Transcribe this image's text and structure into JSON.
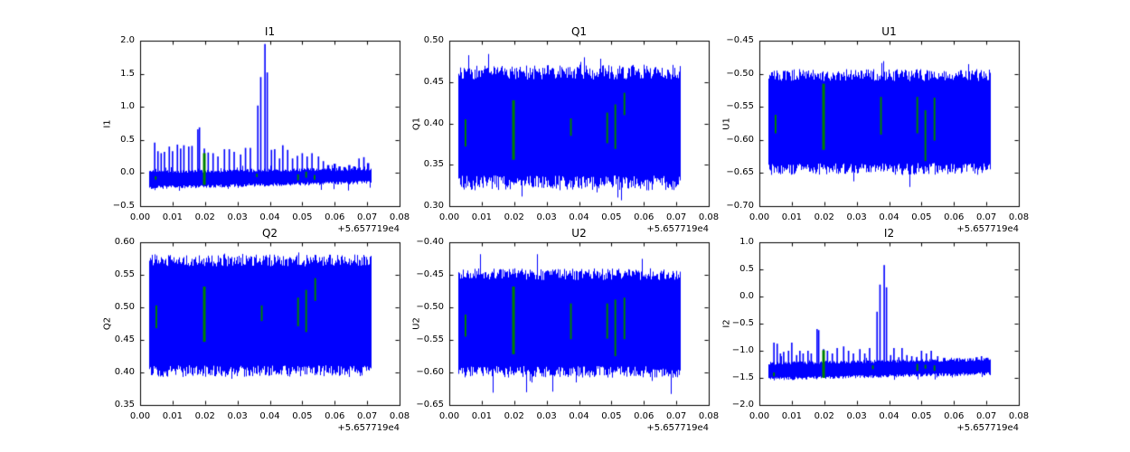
{
  "figure": {
    "background": "#ffffff",
    "line_color": "#0000ff",
    "event_color": "#008000",
    "axis_color": "#000000",
    "x_offset_label": "+5.657719e4"
  },
  "chart_data": [
    {
      "type": "line",
      "title": "I1",
      "ylabel": "I1",
      "x_offset_label": "+5.657719e4",
      "xlim": [
        0,
        0.08
      ],
      "ylim": [
        -0.5,
        2.0
      ],
      "x_ticks": [
        0,
        0.01,
        0.02,
        0.03,
        0.04,
        0.05,
        0.06,
        0.07,
        0.08
      ],
      "x_tick_labels": [
        "0.00",
        "0.01",
        "0.02",
        "0.03",
        "0.04",
        "0.05",
        "0.06",
        "0.07",
        "0.08"
      ],
      "y_ticks": [
        2.0,
        1.5,
        1.0,
        0.5,
        0.0,
        -0.5
      ],
      "y_tick_labels": [
        "2.0",
        "1.5",
        "1.0",
        "0.5",
        "0.0",
        "−0.5"
      ],
      "x_range": [
        0.0028,
        0.0712
      ],
      "spike_base": -0.02,
      "noise": {
        "kind": "baseline",
        "lo": [
          -0.22,
          -0.14
        ],
        "hi": [
          0.02,
          0.06
        ],
        "jitter": 0.05,
        "rare_lo": -0.27,
        "rare_hi": 0.14,
        "rare_p": 0.06
      },
      "spikes": [
        [
          0.0045,
          0.46
        ],
        [
          0.0055,
          0.33
        ],
        [
          0.0065,
          0.3
        ],
        [
          0.0075,
          0.32
        ],
        [
          0.009,
          0.4
        ],
        [
          0.01,
          0.33
        ],
        [
          0.0115,
          0.43
        ],
        [
          0.0125,
          0.37
        ],
        [
          0.0135,
          0.42
        ],
        [
          0.015,
          0.4
        ],
        [
          0.016,
          0.41
        ],
        [
          0.0178,
          0.66
        ],
        [
          0.0183,
          0.69
        ],
        [
          0.0198,
          0.37
        ],
        [
          0.021,
          0.31
        ],
        [
          0.0225,
          0.3
        ],
        [
          0.024,
          0.25
        ],
        [
          0.026,
          0.36
        ],
        [
          0.0275,
          0.36
        ],
        [
          0.029,
          0.32
        ],
        [
          0.031,
          0.28
        ],
        [
          0.0325,
          0.38
        ],
        [
          0.034,
          0.38
        ],
        [
          0.0363,
          1.02
        ],
        [
          0.0372,
          1.45
        ],
        [
          0.0385,
          1.95
        ],
        [
          0.0392,
          1.52
        ],
        [
          0.0405,
          0.35
        ],
        [
          0.0415,
          0.36
        ],
        [
          0.043,
          0.22
        ],
        [
          0.044,
          0.42
        ],
        [
          0.0455,
          0.35
        ],
        [
          0.047,
          0.22
        ],
        [
          0.0485,
          0.26
        ],
        [
          0.05,
          0.3
        ],
        [
          0.0515,
          0.25
        ],
        [
          0.053,
          0.3
        ],
        [
          0.055,
          0.25
        ],
        [
          0.0565,
          0.18
        ],
        [
          0.058,
          0.12,
          2.5
        ],
        [
          0.06,
          0.14,
          2.5
        ],
        [
          0.0615,
          0.1,
          2.5
        ],
        [
          0.063,
          0.09,
          2.5
        ],
        [
          0.0645,
          0.12,
          2.5
        ],
        [
          0.066,
          0.1,
          2.5
        ],
        [
          0.0675,
          0.22
        ],
        [
          0.069,
          0.24
        ],
        [
          0.0703,
          0.15,
          2.5
        ]
      ],
      "events": [
        [
          0.0048,
          -0.1,
          -0.05
        ],
        [
          0.0198,
          -0.18,
          0.3,
          3
        ],
        [
          0.036,
          -0.06,
          -0.01
        ],
        [
          0.0487,
          -0.11,
          -0.02
        ],
        [
          0.0512,
          -0.07,
          0.02
        ],
        [
          0.0538,
          -0.1,
          -0.03
        ]
      ]
    },
    {
      "type": "line",
      "title": "Q1",
      "ylabel": "Q1",
      "x_offset_label": "+5.657719e4",
      "xlim": [
        0,
        0.08
      ],
      "ylim": [
        0.3,
        0.5
      ],
      "x_ticks": [
        0,
        0.01,
        0.02,
        0.03,
        0.04,
        0.05,
        0.06,
        0.07,
        0.08
      ],
      "x_tick_labels": [
        "0.00",
        "0.01",
        "0.02",
        "0.03",
        "0.04",
        "0.05",
        "0.06",
        "0.07",
        "0.08"
      ],
      "y_ticks": [
        0.5,
        0.45,
        0.4,
        0.35,
        0.3
      ],
      "y_tick_labels": [
        "0.50",
        "0.45",
        "0.40",
        "0.35",
        "0.30"
      ],
      "x_range": [
        0.0028,
        0.0712
      ],
      "noise": {
        "kind": "band",
        "lo": 0.328,
        "hi": 0.462,
        "jitter": 0.018,
        "rare_lo": 0.303,
        "rare_hi": 0.487,
        "rare_p": 0.035
      },
      "spikes": [],
      "events": [
        [
          0.005,
          0.372,
          0.405
        ],
        [
          0.0198,
          0.356,
          0.428,
          3
        ],
        [
          0.0375,
          0.385,
          0.406
        ],
        [
          0.0487,
          0.376,
          0.413
        ],
        [
          0.0512,
          0.369,
          0.423
        ],
        [
          0.054,
          0.41,
          0.437
        ]
      ]
    },
    {
      "type": "line",
      "title": "U1",
      "ylabel": "U1",
      "x_offset_label": "+5.657719e4",
      "xlim": [
        0,
        0.08
      ],
      "ylim": [
        -0.7,
        -0.45
      ],
      "x_ticks": [
        0,
        0.01,
        0.02,
        0.03,
        0.04,
        0.05,
        0.06,
        0.07,
        0.08
      ],
      "x_tick_labels": [
        "0.00",
        "0.01",
        "0.02",
        "0.03",
        "0.04",
        "0.05",
        "0.06",
        "0.07",
        "0.08"
      ],
      "y_ticks": [
        -0.45,
        -0.5,
        -0.55,
        -0.6,
        -0.65,
        -0.7
      ],
      "y_tick_labels": [
        "−0.45",
        "−0.50",
        "−0.55",
        "−0.60",
        "−0.65",
        "−0.70"
      ],
      "x_range": [
        0.0028,
        0.0712
      ],
      "noise": {
        "kind": "band",
        "lo": -0.644,
        "hi": -0.502,
        "jitter": 0.018,
        "rare_lo": -0.682,
        "rare_hi": -0.457,
        "rare_p": 0.035
      },
      "spikes": [],
      "events": [
        [
          0.005,
          -0.59,
          -0.562
        ],
        [
          0.0198,
          -0.615,
          -0.515,
          3
        ],
        [
          0.0375,
          -0.592,
          -0.535
        ],
        [
          0.0487,
          -0.59,
          -0.535
        ],
        [
          0.0512,
          -0.632,
          -0.555
        ],
        [
          0.054,
          -0.601,
          -0.536
        ]
      ]
    },
    {
      "type": "line",
      "title": "Q2",
      "ylabel": "Q2",
      "x_offset_label": "+5.657719e4",
      "xlim": [
        0,
        0.08
      ],
      "ylim": [
        0.35,
        0.6
      ],
      "x_ticks": [
        0,
        0.01,
        0.02,
        0.03,
        0.04,
        0.05,
        0.06,
        0.07,
        0.08
      ],
      "x_tick_labels": [
        "0.00",
        "0.01",
        "0.02",
        "0.03",
        "0.04",
        "0.05",
        "0.06",
        "0.07",
        "0.08"
      ],
      "y_ticks": [
        0.6,
        0.55,
        0.5,
        0.45,
        0.4,
        0.35
      ],
      "y_tick_labels": [
        "0.60",
        "0.55",
        "0.50",
        "0.45",
        "0.40",
        "0.35"
      ],
      "x_range": [
        0.0028,
        0.0712
      ],
      "noise": {
        "kind": "band",
        "lo": 0.402,
        "hi": 0.572,
        "jitter": 0.018,
        "rare_lo": 0.387,
        "rare_hi": 0.594,
        "rare_p": 0.035
      },
      "spikes": [],
      "events": [
        [
          0.005,
          0.468,
          0.503
        ],
        [
          0.0198,
          0.447,
          0.532,
          3
        ],
        [
          0.0375,
          0.479,
          0.503
        ],
        [
          0.0487,
          0.471,
          0.515
        ],
        [
          0.0512,
          0.462,
          0.527
        ],
        [
          0.054,
          0.51,
          0.545
        ]
      ]
    },
    {
      "type": "line",
      "title": "U2",
      "ylabel": "U2",
      "x_offset_label": "+5.657719e4",
      "xlim": [
        0,
        0.08
      ],
      "ylim": [
        -0.65,
        -0.4
      ],
      "x_ticks": [
        0,
        0.01,
        0.02,
        0.03,
        0.04,
        0.05,
        0.06,
        0.07,
        0.08
      ],
      "x_tick_labels": [
        "0.00",
        "0.01",
        "0.02",
        "0.03",
        "0.04",
        "0.05",
        "0.06",
        "0.07",
        "0.08"
      ],
      "y_ticks": [
        -0.4,
        -0.45,
        -0.5,
        -0.55,
        -0.6,
        -0.65
      ],
      "y_tick_labels": [
        "−0.40",
        "−0.45",
        "−0.50",
        "−0.55",
        "−0.60",
        "−0.65"
      ],
      "x_range": [
        0.0028,
        0.0712
      ],
      "noise": {
        "kind": "band",
        "lo": -0.599,
        "hi": -0.449,
        "jitter": 0.018,
        "rare_lo": -0.636,
        "rare_hi": -0.407,
        "rare_p": 0.035
      },
      "spikes": [],
      "events": [
        [
          0.005,
          -0.545,
          -0.511
        ],
        [
          0.0198,
          -0.572,
          -0.468,
          3
        ],
        [
          0.0375,
          -0.549,
          -0.494
        ],
        [
          0.0487,
          -0.548,
          -0.494
        ],
        [
          0.0512,
          -0.575,
          -0.488
        ],
        [
          0.054,
          -0.549,
          -0.485
        ]
      ]
    },
    {
      "type": "line",
      "title": "I2",
      "ylabel": "I2",
      "x_offset_label": "+5.657719e4",
      "xlim": [
        0,
        0.08
      ],
      "ylim": [
        -2.0,
        1.0
      ],
      "x_ticks": [
        0,
        0.01,
        0.02,
        0.03,
        0.04,
        0.05,
        0.06,
        0.07,
        0.08
      ],
      "x_tick_labels": [
        "0.00",
        "0.01",
        "0.02",
        "0.03",
        "0.04",
        "0.05",
        "0.06",
        "0.07",
        "0.08"
      ],
      "y_ticks": [
        1.0,
        0.5,
        0.0,
        -0.5,
        -1.0,
        -1.5,
        -2.0
      ],
      "y_tick_labels": [
        "1.0",
        "0.5",
        "0.0",
        "−0.5",
        "−1.0",
        "−1.5",
        "−2.0"
      ],
      "x_range": [
        0.0028,
        0.0712
      ],
      "spike_base": -1.32,
      "noise": {
        "kind": "baseline",
        "lo": [
          -1.52,
          -1.42
        ],
        "hi": [
          -1.23,
          -1.16
        ],
        "jitter": 0.06,
        "rare_lo": -1.56,
        "rare_hi": -1.1,
        "rare_p": 0.05
      },
      "spikes": [
        [
          0.0045,
          -0.85
        ],
        [
          0.0055,
          -0.87
        ],
        [
          0.0065,
          -1.05
        ],
        [
          0.0075,
          -1.02
        ],
        [
          0.009,
          -1.0
        ],
        [
          0.01,
          -0.85
        ],
        [
          0.0115,
          -1.08
        ],
        [
          0.0125,
          -1.0
        ],
        [
          0.0135,
          -1.05
        ],
        [
          0.015,
          -1.0
        ],
        [
          0.016,
          -1.05
        ],
        [
          0.0178,
          -0.6
        ],
        [
          0.0183,
          -0.62
        ],
        [
          0.0198,
          -0.97
        ],
        [
          0.021,
          -1.0
        ],
        [
          0.0225,
          -1.05
        ],
        [
          0.024,
          -0.95
        ],
        [
          0.026,
          -0.92
        ],
        [
          0.0275,
          -1.0
        ],
        [
          0.029,
          -1.05
        ],
        [
          0.031,
          -0.97
        ],
        [
          0.0325,
          -1.05
        ],
        [
          0.034,
          -0.95
        ],
        [
          0.0363,
          -0.28
        ],
        [
          0.0372,
          0.22
        ],
        [
          0.0385,
          0.58
        ],
        [
          0.0392,
          0.17
        ],
        [
          0.0405,
          -1.08
        ],
        [
          0.0415,
          -0.95
        ],
        [
          0.043,
          -1.12
        ],
        [
          0.044,
          -0.95
        ],
        [
          0.0455,
          -1.08
        ],
        [
          0.047,
          -1.1
        ],
        [
          0.0485,
          -1.12
        ],
        [
          0.05,
          -1.0
        ],
        [
          0.0515,
          -1.05
        ],
        [
          0.053,
          -1.0
        ],
        [
          0.055,
          -1.1
        ],
        [
          0.057,
          -1.13,
          2.5
        ],
        [
          0.059,
          -1.16,
          2.5
        ],
        [
          0.061,
          -1.14,
          2.5
        ],
        [
          0.063,
          -1.16,
          2.5
        ],
        [
          0.065,
          -1.14,
          2.5
        ],
        [
          0.067,
          -1.12,
          2.5
        ],
        [
          0.0685,
          -1.1
        ],
        [
          0.0703,
          -1.13,
          2.5
        ]
      ],
      "events": [
        [
          0.0045,
          -1.47,
          -1.4
        ],
        [
          0.0198,
          -1.5,
          -0.99,
          3
        ],
        [
          0.035,
          -1.34,
          -1.27
        ],
        [
          0.0487,
          -1.37,
          -1.24
        ],
        [
          0.0512,
          -1.33,
          -1.26
        ],
        [
          0.054,
          -1.37,
          -1.27
        ]
      ]
    }
  ]
}
